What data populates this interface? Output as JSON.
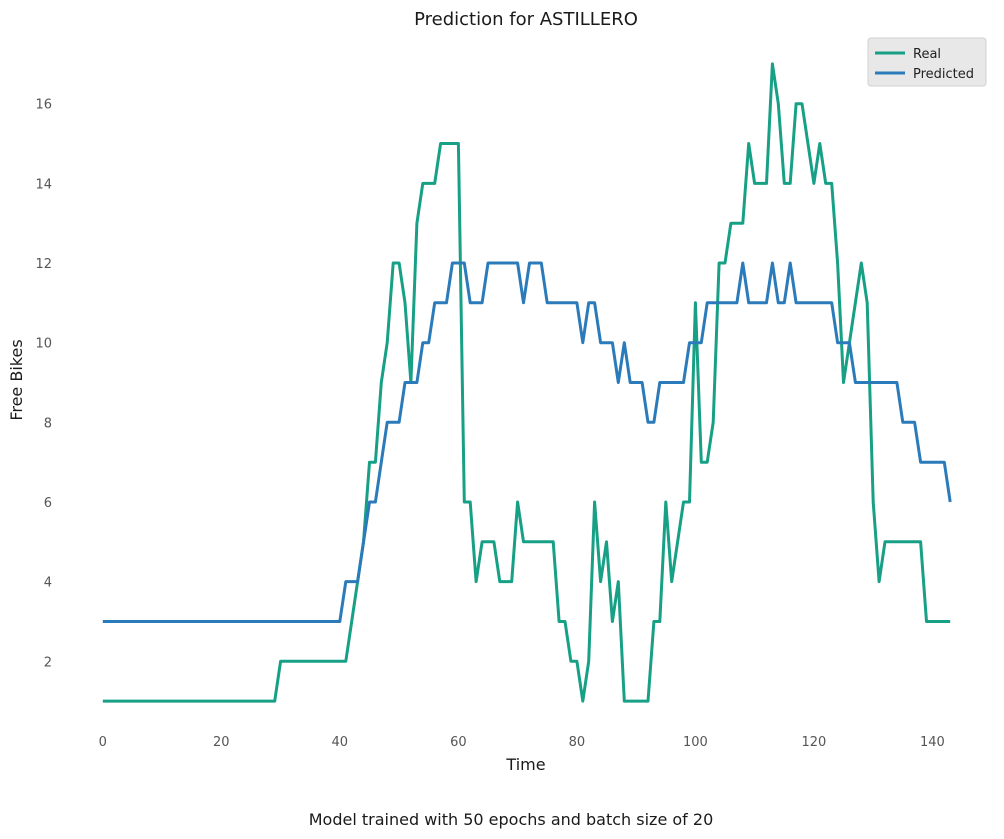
{
  "chart_data": {
    "type": "line",
    "title": "Prediction for ASTILLERO",
    "xlabel": "Time",
    "ylabel": "Free Bikes",
    "caption": "Model trained with 50 epochs and batch size of 20",
    "xlim": [
      -2.5,
      145.5
    ],
    "ylim": [
      0.2,
      17.8
    ],
    "xticks": [
      0,
      20,
      40,
      60,
      80,
      100,
      120,
      140
    ],
    "yticks": [
      2,
      4,
      6,
      8,
      10,
      12,
      14,
      16
    ],
    "grid": false,
    "legend_position": "top-right",
    "series": [
      {
        "name": "Real",
        "color": "#17a085",
        "x": [
          0,
          29,
          30,
          41,
          42,
          43,
          44,
          45,
          46,
          47,
          48,
          49,
          50,
          51,
          52,
          53,
          54,
          56,
          57,
          60,
          61,
          62,
          63,
          64,
          66,
          67,
          69,
          70,
          71,
          75,
          76,
          77,
          78,
          79,
          80,
          81,
          82,
          83,
          84,
          85,
          86,
          87,
          88,
          92,
          93,
          94,
          95,
          96,
          98,
          99,
          100,
          101,
          102,
          103,
          104,
          105,
          106,
          108,
          109,
          110,
          112,
          113,
          114,
          115,
          116,
          117,
          118,
          120,
          121,
          122,
          123,
          124,
          125,
          128,
          129,
          130,
          131,
          132,
          138,
          139,
          143
        ],
        "y": [
          1,
          1,
          2,
          2,
          3,
          4,
          5,
          7,
          7,
          9,
          10,
          12,
          12,
          11,
          9,
          13,
          14,
          14,
          15,
          15,
          6,
          6,
          4,
          5,
          5,
          4,
          4,
          6,
          5,
          5,
          5,
          3,
          3,
          2,
          2,
          1,
          2,
          6,
          4,
          5,
          3,
          4,
          1,
          1,
          3,
          3,
          6,
          4,
          6,
          6,
          11,
          7,
          7,
          8,
          12,
          12,
          13,
          13,
          15,
          14,
          14,
          17,
          16,
          14,
          14,
          16,
          16,
          14,
          15,
          14,
          14,
          12,
          9,
          12,
          11,
          6,
          4,
          5,
          5,
          3,
          3
        ]
      },
      {
        "name": "Predicted",
        "color": "#2b7bba",
        "x": [
          0,
          40,
          41,
          43,
          45,
          46,
          48,
          50,
          51,
          53,
          54,
          55,
          56,
          58,
          59,
          61,
          62,
          64,
          65,
          66,
          70,
          71,
          72,
          74,
          75,
          78,
          80,
          81,
          82,
          83,
          84,
          86,
          87,
          88,
          89,
          91,
          92,
          93,
          94,
          98,
          99,
          101,
          102,
          107,
          108,
          109,
          112,
          113,
          114,
          115,
          116,
          117,
          123,
          124,
          126,
          127,
          134,
          135,
          137,
          138,
          142,
          143
        ],
        "y": [
          3,
          3,
          4,
          4,
          6,
          6,
          8,
          8,
          9,
          9,
          10,
          10,
          11,
          11,
          12,
          12,
          11,
          11,
          12,
          12,
          12,
          11,
          12,
          12,
          11,
          11,
          11,
          10,
          11,
          11,
          10,
          10,
          9,
          10,
          9,
          9,
          8,
          8,
          9,
          9,
          10,
          10,
          11,
          11,
          12,
          11,
          11,
          12,
          11,
          11,
          12,
          11,
          11,
          10,
          10,
          9,
          9,
          8,
          8,
          7,
          7,
          6
        ]
      }
    ]
  }
}
